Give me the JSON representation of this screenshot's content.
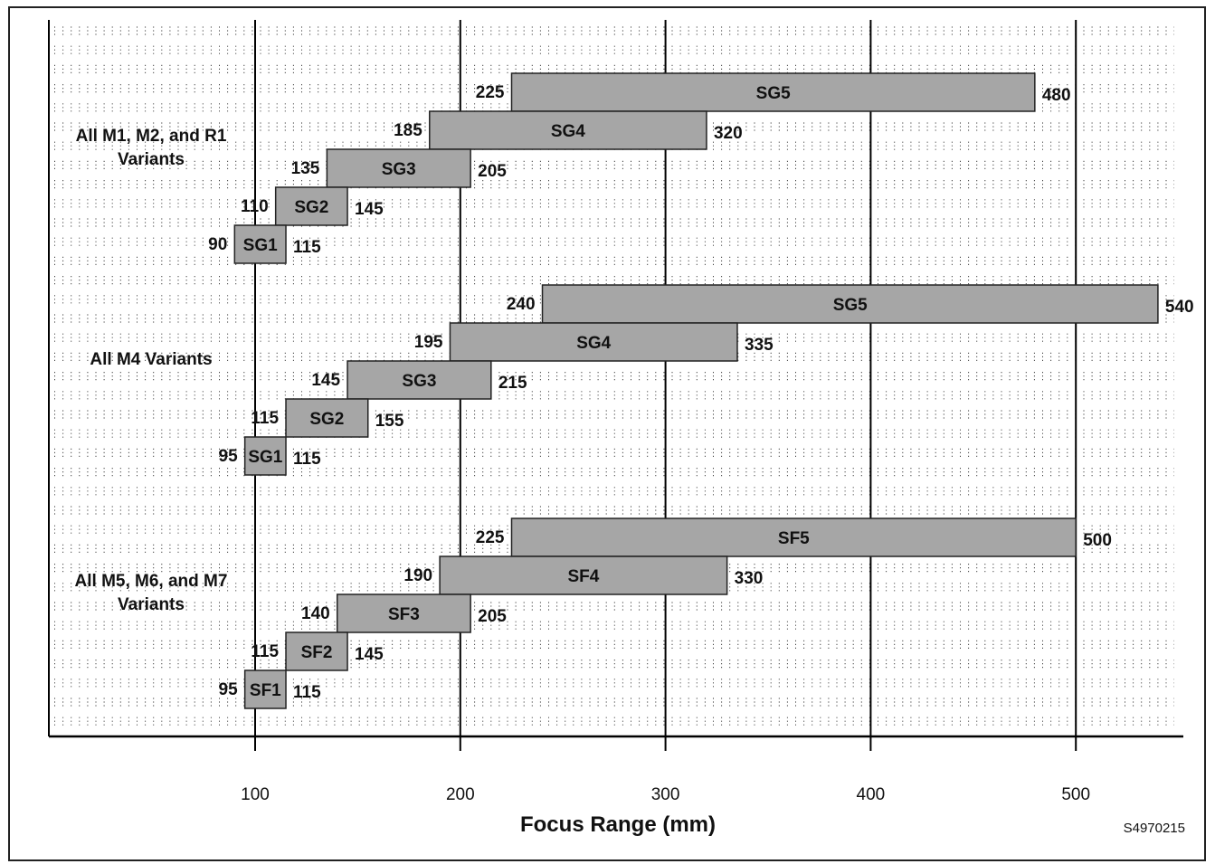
{
  "chart_data": {
    "type": "bar",
    "orientation": "horizontal-range",
    "xlabel": "Focus Range (mm)",
    "xlim": [
      0,
      545
    ],
    "xticks": [
      100,
      200,
      300,
      400,
      500
    ],
    "figure_id": "S4970215",
    "grid": true,
    "colors": {
      "bar": "#a6a6a6",
      "grid": "#444444",
      "axis": "#000000"
    },
    "groups": [
      {
        "label_lines": [
          "All M1, M2, and R1",
          "Variants"
        ],
        "bars": [
          {
            "name": "SG5",
            "start": 225,
            "end": 480
          },
          {
            "name": "SG4",
            "start": 185,
            "end": 320
          },
          {
            "name": "SG3",
            "start": 135,
            "end": 205
          },
          {
            "name": "SG2",
            "start": 110,
            "end": 145
          },
          {
            "name": "SG1",
            "start": 90,
            "end": 115
          }
        ]
      },
      {
        "label_lines": [
          "All M4 Variants"
        ],
        "bars": [
          {
            "name": "SG5",
            "start": 240,
            "end": 540
          },
          {
            "name": "SG4",
            "start": 195,
            "end": 335
          },
          {
            "name": "SG3",
            "start": 145,
            "end": 215
          },
          {
            "name": "SG2",
            "start": 115,
            "end": 155
          },
          {
            "name": "SG1",
            "start": 95,
            "end": 115
          }
        ]
      },
      {
        "label_lines": [
          "All M5, M6, and M7",
          "Variants"
        ],
        "bars": [
          {
            "name": "SF5",
            "start": 225,
            "end": 500
          },
          {
            "name": "SF4",
            "start": 190,
            "end": 330
          },
          {
            "name": "SF3",
            "start": 140,
            "end": 205
          },
          {
            "name": "SF2",
            "start": 115,
            "end": 145
          },
          {
            "name": "SF1",
            "start": 95,
            "end": 115
          }
        ]
      }
    ]
  }
}
